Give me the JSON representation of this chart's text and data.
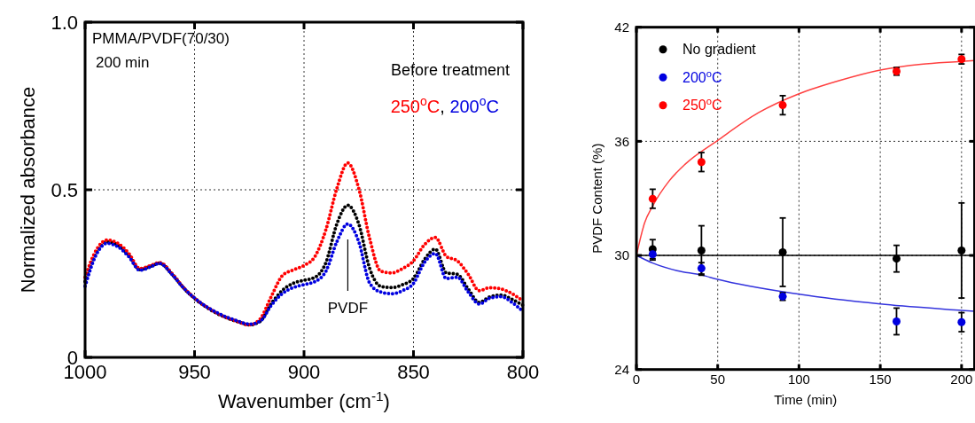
{
  "chart_data": [
    {
      "type": "line",
      "xlabel": "Wavenumber (cm$^{-1}$)",
      "ylabel": "Normalized absorbance",
      "xlim": [
        1000,
        800
      ],
      "xticks": [
        1000,
        950,
        900,
        850,
        800
      ],
      "ylim": [
        0,
        1
      ],
      "yticks": [
        0,
        0.5,
        {
          "value": 1,
          "label": "1.0"
        }
      ],
      "grid": true,
      "legend": "top right",
      "line_style": "dotted",
      "annotations": [
        "PMMA/PVDF(70/30)",
        "200 min",
        "PVDF",
        ","
      ],
      "x": [
        1000,
        995,
        990,
        985,
        980,
        975,
        970,
        966,
        960,
        955,
        950,
        940,
        930,
        925,
        920,
        915,
        910,
        905,
        900,
        895,
        890,
        885,
        880,
        875,
        870,
        865,
        860,
        855,
        850,
        845,
        840,
        835,
        830,
        825,
        820,
        815,
        810,
        805,
        800
      ],
      "series": [
        {
          "name": "Before treatment",
          "color": "#000000",
          "values": [
            0.226,
            0.31,
            0.345,
            0.335,
            0.305,
            0.262,
            0.272,
            0.281,
            0.246,
            0.207,
            0.176,
            0.132,
            0.106,
            0.097,
            0.108,
            0.16,
            0.199,
            0.221,
            0.23,
            0.239,
            0.283,
            0.398,
            0.454,
            0.398,
            0.265,
            0.212,
            0.208,
            0.217,
            0.235,
            0.292,
            0.323,
            0.252,
            0.248,
            0.204,
            0.164,
            0.181,
            0.186,
            0.173,
            0.155
          ]
        },
        {
          "name": "250$^{o}$C",
          "color": "#ff0000",
          "values": [
            0.239,
            0.319,
            0.35,
            0.34,
            0.31,
            0.265,
            0.274,
            0.283,
            0.248,
            0.208,
            0.177,
            0.133,
            0.106,
            0.097,
            0.115,
            0.181,
            0.243,
            0.261,
            0.274,
            0.301,
            0.381,
            0.504,
            0.58,
            0.504,
            0.354,
            0.257,
            0.252,
            0.265,
            0.288,
            0.336,
            0.358,
            0.301,
            0.288,
            0.248,
            0.199,
            0.208,
            0.204,
            0.19,
            0.168
          ]
        },
        {
          "name": "200$^{o}$C",
          "color": "#0000e0",
          "values": [
            0.212,
            0.305,
            0.34,
            0.33,
            0.3,
            0.26,
            0.27,
            0.28,
            0.245,
            0.207,
            0.177,
            0.134,
            0.108,
            0.099,
            0.108,
            0.155,
            0.19,
            0.208,
            0.217,
            0.226,
            0.257,
            0.345,
            0.398,
            0.345,
            0.221,
            0.195,
            0.19,
            0.199,
            0.221,
            0.283,
            0.31,
            0.235,
            0.239,
            0.195,
            0.159,
            0.177,
            0.181,
            0.164,
            0.137
          ]
        }
      ]
    },
    {
      "type": "scatter",
      "xlabel": "Time (min)",
      "ylabel": "PVDF Content (%)",
      "xlim": [
        0,
        208
      ],
      "xticks": [
        0,
        50,
        100,
        150,
        200
      ],
      "ylim": [
        24,
        42
      ],
      "yticks": [
        24,
        30,
        36,
        42
      ],
      "grid": true,
      "legend": "top left",
      "marker": "circle",
      "x": [
        10,
        40,
        90,
        160,
        200
      ],
      "series": [
        {
          "name": "No gradient",
          "color": "#000000",
          "values": [
            30.33,
            30.26,
            30.17,
            29.83,
            30.26
          ],
          "errors": [
            0.5,
            1.3,
            1.8,
            0.7,
            2.5
          ]
        },
        {
          "name": "200$^{o}$C",
          "color": "#0000e0",
          "values": [
            30.06,
            29.32,
            27.84,
            26.53,
            26.49
          ],
          "errors": [
            0.3,
            0.3,
            0.2,
            0.7,
            0.5
          ]
        },
        {
          "name": "250$^{o}$C",
          "color": "#ff0000",
          "values": [
            32.98,
            34.91,
            37.9,
            39.68,
            40.32
          ],
          "errors": [
            0.5,
            0.5,
            0.5,
            0.2,
            0.25
          ]
        },
        {
          "type": "line",
          "marker": "none",
          "color": "#000000",
          "x": [
            0,
            208
          ],
          "values": [
            30,
            30
          ]
        },
        {
          "type": "line",
          "marker": "none",
          "color": "#3333dd",
          "x": [
            0,
            10,
            25,
            40,
            50,
            100,
            150,
            200,
            208
          ],
          "values": [
            30,
            29.6,
            29.2,
            28.97,
            28.74,
            27.96,
            27.45,
            27.11,
            27.06
          ]
        },
        {
          "type": "line",
          "marker": "none",
          "color": "#ff4040",
          "x": [
            0,
            5,
            10,
            20,
            30,
            50,
            75,
            100,
            125,
            150,
            175,
            200,
            208
          ],
          "values": [
            30,
            31.7,
            32.6,
            33.9,
            34.8,
            36.05,
            37.5,
            38.5,
            39.2,
            39.75,
            40.05,
            40.2,
            40.25
          ]
        }
      ]
    }
  ]
}
